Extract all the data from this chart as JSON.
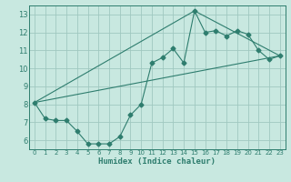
{
  "xlabel": "Humidex (Indice chaleur)",
  "xlim": [
    -0.5,
    23.5
  ],
  "ylim": [
    5.5,
    13.5
  ],
  "xticks": [
    0,
    1,
    2,
    3,
    4,
    5,
    6,
    7,
    8,
    9,
    10,
    11,
    12,
    13,
    14,
    15,
    16,
    17,
    18,
    19,
    20,
    21,
    22,
    23
  ],
  "yticks": [
    6,
    7,
    8,
    9,
    10,
    11,
    12,
    13
  ],
  "bg_color": "#c8e8e0",
  "grid_color": "#a0c8c0",
  "line_color": "#2e7d6e",
  "curve_x": [
    0,
    1,
    2,
    3,
    4,
    5,
    6,
    7,
    8,
    9,
    10,
    11,
    12,
    13,
    14,
    15,
    16,
    17,
    18,
    19,
    20,
    21,
    22,
    23
  ],
  "curve_y": [
    8.1,
    7.2,
    7.1,
    7.1,
    6.5,
    5.8,
    5.8,
    5.8,
    6.2,
    7.4,
    8.0,
    10.3,
    10.6,
    11.1,
    10.3,
    13.2,
    12.0,
    12.1,
    11.8,
    12.1,
    11.9,
    11.0,
    10.5,
    10.7
  ],
  "upper_line_x": [
    0,
    15,
    23
  ],
  "upper_line_y": [
    8.1,
    13.2,
    10.7
  ],
  "lower_line_x": [
    0,
    23
  ],
  "lower_line_y": [
    8.1,
    10.7
  ]
}
